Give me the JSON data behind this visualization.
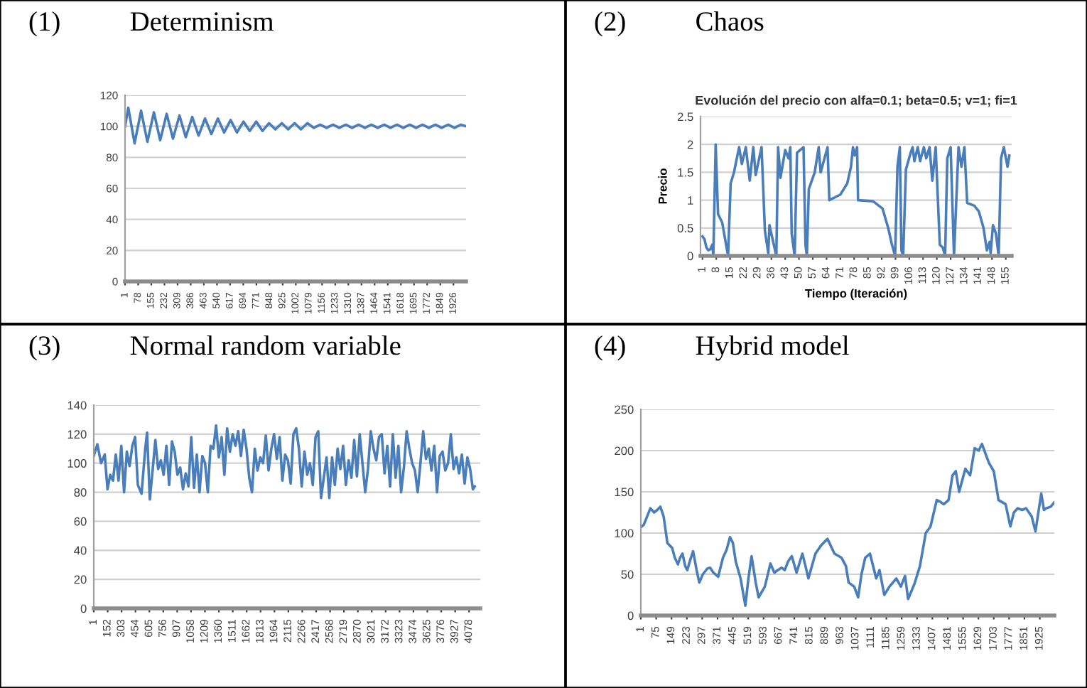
{
  "chart_data": [
    {
      "type": "line",
      "title": "(1)          Determinism",
      "xlim": [
        1,
        2000
      ],
      "ylim": [
        0,
        120
      ],
      "yticks": [
        0,
        20,
        40,
        60,
        80,
        100,
        120
      ],
      "xticks": [
        1,
        78,
        155,
        232,
        309,
        386,
        463,
        540,
        617,
        694,
        771,
        848,
        925,
        1002,
        1079,
        1156,
        1233,
        1310,
        1387,
        1464,
        1541,
        1618,
        1695,
        1772,
        1849,
        1926
      ],
      "grid": "y",
      "legend": false,
      "series": [
        {
          "color": "#4a7ebb",
          "x": [
            1,
            20,
            57,
            95,
            132,
            170,
            207,
            245,
            282,
            320,
            357,
            395,
            432,
            470,
            507,
            545,
            582,
            620,
            657,
            695,
            732,
            770,
            807,
            845,
            882,
            920,
            957,
            995,
            1032,
            1070,
            1107,
            1145,
            1182,
            1220,
            1257,
            1295,
            1332,
            1370,
            1407,
            1445,
            1482,
            1520,
            1557,
            1595,
            1632,
            1670,
            1707,
            1745,
            1782,
            1820,
            1857,
            1895,
            1932,
            1970,
            2000
          ],
          "values": [
            100,
            112,
            89,
            110,
            90,
            109,
            91,
            108,
            92,
            107,
            93,
            106,
            94,
            105,
            95,
            105,
            96,
            104,
            96,
            103,
            97,
            103,
            97,
            102,
            98,
            102,
            98,
            102,
            98,
            102,
            99,
            101,
            99,
            101,
            99,
            101,
            99,
            101,
            99,
            101,
            99,
            101,
            99,
            101,
            99,
            101,
            99,
            101,
            99,
            101,
            99,
            101,
            99,
            101,
            100
          ]
        }
      ]
    },
    {
      "type": "line",
      "title": "(2)          Chaos",
      "subtitle": "Evolución del precio con alfa=0.1; beta=0.5; v=1; fi=1",
      "xlabel": "Tiempo (Iteración)",
      "ylabel": "Precio",
      "xlim": [
        0,
        158
      ],
      "ylim": [
        0,
        2.5
      ],
      "yticks": [
        0,
        0.5,
        1,
        1.5,
        2,
        2.5
      ],
      "xticks": [
        1,
        8,
        15,
        22,
        29,
        36,
        43,
        50,
        57,
        64,
        71,
        78,
        85,
        92,
        99,
        106,
        113,
        120,
        127,
        134,
        141,
        148,
        155
      ],
      "grid": "y",
      "legend": false,
      "series": [
        {
          "color": "#4a7ebb",
          "x": [
            1,
            2,
            3,
            4,
            5,
            6,
            6.5,
            7.7,
            8.9,
            11,
            12.5,
            14,
            15.3,
            17,
            19.6,
            21,
            23,
            25,
            26.8,
            28,
            31,
            32.7,
            34.4,
            35,
            36.6,
            38.5,
            39.4,
            40.6,
            43,
            44.7,
            45.6,
            46.3,
            47.8,
            49,
            52.3,
            53.3,
            54,
            55,
            58,
            60,
            61,
            64.5,
            65.4,
            71,
            74.5,
            76.4,
            77.4,
            78.3,
            79.5,
            80,
            87.6,
            92.4,
            95.3,
            97.2,
            98.8,
            100,
            101.2,
            102,
            102.9,
            104.3,
            106.7,
            107.7,
            108.6,
            110.3,
            111.5,
            113.4,
            114.6,
            116.3,
            117.7,
            119.4,
            121.5,
            123,
            124.2,
            125.3,
            127,
            128.7,
            131,
            132.5,
            134,
            135.4,
            139,
            141.3,
            143.7,
            145.4,
            146.8,
            147.3,
            148.5,
            150,
            151.4,
            152.6,
            154,
            155.9,
            156.8
          ],
          "values": [
            0.35,
            0.3,
            0.15,
            0.1,
            0.12,
            0.2,
            0,
            2,
            0.75,
            0.6,
            0.3,
            0,
            1.3,
            1.5,
            1.95,
            1.65,
            1.95,
            1.35,
            1.95,
            1.45,
            1.95,
            0.45,
            0.05,
            0.55,
            0.3,
            0,
            1.95,
            1.4,
            1.9,
            1.75,
            1.95,
            0.4,
            0,
            1.85,
            1.95,
            0.2,
            0,
            1.2,
            1.5,
            1.95,
            1.5,
            1.95,
            1,
            1.1,
            1.3,
            1.6,
            1.95,
            1.8,
            1.95,
            1,
            0.98,
            0.85,
            0.5,
            0.2,
            0,
            1.6,
            1.95,
            0.1,
            0,
            1.55,
            1.85,
            1.95,
            1.7,
            1.95,
            1.7,
            1.95,
            1.75,
            1.95,
            1.35,
            1.95,
            0.2,
            0.15,
            0,
            1.75,
            1.95,
            0,
            1.95,
            1.6,
            1.95,
            0.95,
            0.9,
            0.8,
            0.5,
            0.1,
            0.25,
            0.05,
            0.55,
            0.4,
            0,
            1.75,
            1.95,
            1.6,
            1.8
          ]
        }
      ]
    },
    {
      "type": "line",
      "title": "(3)          Normal random variable",
      "xlim": [
        1,
        4200
      ],
      "ylim": [
        0,
        140
      ],
      "yticks": [
        0,
        20,
        40,
        60,
        80,
        100,
        120,
        140
      ],
      "xticks": [
        1,
        152,
        303,
        454,
        605,
        756,
        907,
        1058,
        1209,
        1360,
        1511,
        1662,
        1813,
        1964,
        2115,
        2266,
        2417,
        2568,
        2719,
        2870,
        3021,
        3172,
        3323,
        3474,
        3625,
        3776,
        3927,
        4078
      ],
      "grid": "y",
      "legend": false,
      "series": [
        {
          "color": "#4a7ebb",
          "x": [
            1,
            40,
            80,
            120,
            150,
            180,
            210,
            240,
            270,
            300,
            330,
            360,
            390,
            420,
            450,
            480,
            520,
            560,
            580,
            610,
            640,
            670,
            700,
            730,
            760,
            790,
            820,
            850,
            880,
            910,
            940,
            970,
            1000,
            1030,
            1060,
            1090,
            1120,
            1150,
            1180,
            1210,
            1240,
            1270,
            1300,
            1330,
            1360,
            1390,
            1420,
            1450,
            1480,
            1510,
            1540,
            1570,
            1600,
            1630,
            1660,
            1690,
            1720,
            1750,
            1780,
            1810,
            1840,
            1870,
            1900,
            1930,
            1960,
            1990,
            2020,
            2050,
            2080,
            2110,
            2140,
            2170,
            2200,
            2230,
            2260,
            2290,
            2320,
            2350,
            2380,
            2410,
            2440,
            2470,
            2500,
            2530,
            2560,
            2590,
            2620,
            2650,
            2680,
            2710,
            2740,
            2770,
            2800,
            2830,
            2860,
            2890,
            2920,
            2950,
            2980,
            3010,
            3040,
            3070,
            3100,
            3130,
            3160,
            3190,
            3220,
            3250,
            3280,
            3310,
            3340,
            3370,
            3400,
            3430,
            3460,
            3490,
            3520,
            3550,
            3580,
            3610,
            3640,
            3670,
            3700,
            3730,
            3760,
            3790,
            3820,
            3850,
            3880,
            3910,
            3940,
            3970,
            4000,
            4030,
            4060,
            4090,
            4120,
            4140
          ],
          "values": [
            105,
            113,
            100,
            106,
            82,
            92,
            88,
            106,
            88,
            112,
            80,
            108,
            98,
            112,
            118,
            85,
            79,
            110,
            121,
            75,
            95,
            116,
            96,
            102,
            92,
            112,
            85,
            115,
            108,
            92,
            97,
            82,
            93,
            84,
            118,
            83,
            106,
            80,
            105,
            100,
            80,
            112,
            110,
            126,
            104,
            118,
            92,
            124,
            108,
            120,
            112,
            122,
            105,
            123,
            110,
            90,
            80,
            110,
            95,
            104,
            100,
            119,
            95,
            110,
            120,
            103,
            118,
            88,
            106,
            102,
            86,
            120,
            124,
            110,
            84,
            108,
            92,
            100,
            85,
            118,
            122,
            76,
            90,
            104,
            76,
            104,
            85,
            110,
            96,
            112,
            85,
            102,
            90,
            116,
            91,
            120,
            100,
            80,
            96,
            122,
            110,
            102,
            118,
            120,
            93,
            112,
            84,
            120,
            90,
            112,
            80,
            97,
            122,
            110,
            100,
            95,
            80,
            100,
            122,
            103,
            110,
            95,
            112,
            80,
            105,
            108,
            95,
            100,
            120,
            96,
            104,
            93,
            106,
            86,
            104,
            96,
            82,
            84
          ]
        }
      ]
    },
    {
      "type": "line",
      "title": "(4)          Hybrid model",
      "xlim": [
        1,
        1995
      ],
      "ylim": [
        0,
        250
      ],
      "yticks": [
        0,
        50,
        100,
        150,
        200,
        250
      ],
      "xticks": [
        1,
        75,
        149,
        223,
        297,
        371,
        445,
        519,
        593,
        667,
        741,
        815,
        889,
        963,
        1037,
        1111,
        1185,
        1259,
        1333,
        1407,
        1481,
        1555,
        1629,
        1703,
        1777,
        1851,
        1925
      ],
      "grid": "y",
      "legend": false,
      "series": [
        {
          "color": "#4a7ebb",
          "x": [
            1,
            15,
            31,
            47,
            65,
            80,
            95,
            111,
            129,
            140,
            152,
            165,
            180,
            190,
            202,
            215,
            225,
            240,
            253,
            270,
            283,
            300,
            322,
            335,
            351,
            374,
            397,
            415,
            431,
            445,
            459,
            482,
            505,
            520,
            535,
            555,
            569,
            599,
            626,
            645,
            661,
            680,
            695,
            712,
            729,
            752,
            780,
            795,
            809,
            843,
            870,
            901,
            935,
            969,
            990,
            1003,
            1030,
            1049,
            1065,
            1083,
            1106,
            1136,
            1152,
            1175,
            1200,
            1233,
            1255,
            1275,
            1290,
            1320,
            1347,
            1375,
            1398,
            1428,
            1445,
            1462,
            1485,
            1504,
            1520,
            1536,
            1566,
            1589,
            1611,
            1630,
            1646,
            1665,
            1680,
            1703,
            1726,
            1760,
            1783,
            1800,
            1818,
            1840,
            1859,
            1886,
            1904,
            1932,
            1945,
            1955,
            1978,
            1994
          ],
          "values": [
            107,
            110,
            120,
            130,
            125,
            128,
            132,
            120,
            88,
            85,
            82,
            70,
            62,
            70,
            75,
            60,
            55,
            68,
            78,
            55,
            40,
            50,
            57,
            58,
            52,
            47,
            70,
            80,
            95,
            88,
            65,
            45,
            12,
            45,
            72,
            40,
            22,
            35,
            63,
            52,
            55,
            58,
            55,
            66,
            72,
            52,
            75,
            60,
            45,
            75,
            85,
            93,
            75,
            70,
            60,
            40,
            35,
            22,
            50,
            70,
            75,
            45,
            55,
            25,
            35,
            45,
            35,
            48,
            20,
            38,
            60,
            100,
            108,
            140,
            138,
            135,
            140,
            170,
            175,
            150,
            178,
            170,
            203,
            200,
            208,
            195,
            185,
            175,
            140,
            135,
            108,
            125,
            130,
            128,
            130,
            120,
            102,
            148,
            128,
            130,
            132,
            137
          ]
        }
      ]
    }
  ]
}
